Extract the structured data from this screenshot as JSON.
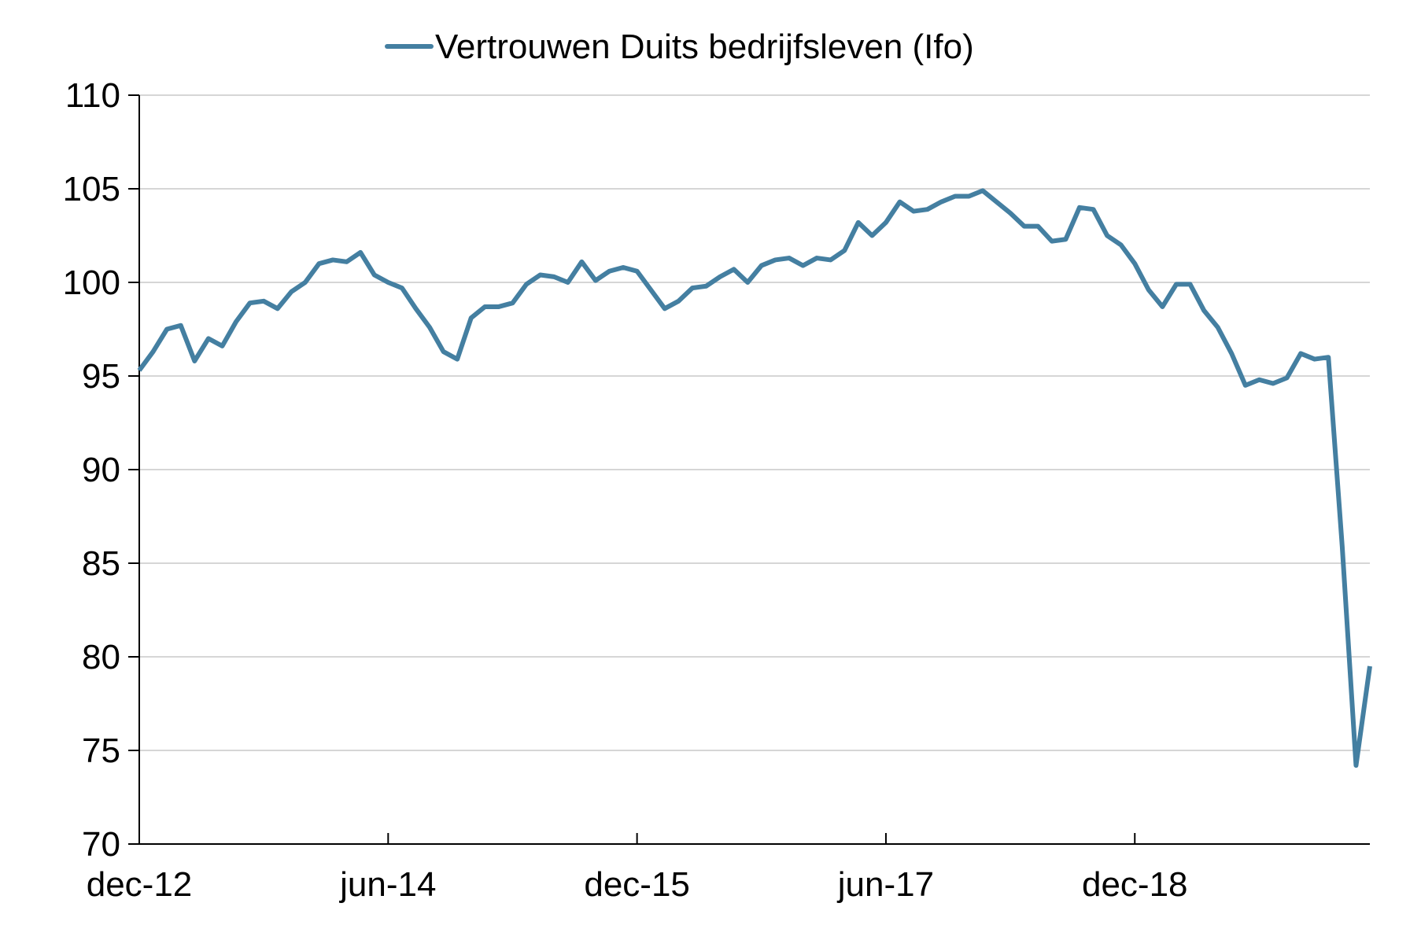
{
  "chart_data": {
    "type": "line",
    "title": "",
    "xlabel": "",
    "ylabel": "",
    "legend": {
      "placement": "top-center"
    },
    "grid": {
      "horizontal": true,
      "vertical": false
    },
    "ylim": [
      70,
      110
    ],
    "yticks": [
      70,
      75,
      80,
      85,
      90,
      95,
      100,
      105,
      110
    ],
    "xtick_labels": [
      "dec-12",
      "jun-14",
      "dec-15",
      "jun-17",
      "dec-18"
    ],
    "xtick_index": [
      0,
      18,
      36,
      54,
      72
    ],
    "x_count": 90,
    "colors": {
      "series": "#447fa1"
    },
    "series": [
      {
        "name": "Vertrouwen Duits bedrijfsleven (Ifo)",
        "values": [
          95.3,
          96.3,
          97.5,
          97.7,
          95.8,
          97.0,
          96.6,
          97.9,
          98.9,
          99.0,
          98.6,
          99.5,
          100.0,
          101.0,
          101.2,
          101.1,
          101.6,
          100.4,
          100.0,
          99.7,
          98.6,
          97.6,
          96.3,
          95.9,
          98.1,
          98.7,
          98.7,
          98.9,
          99.9,
          100.4,
          100.3,
          100.0,
          101.1,
          100.1,
          100.6,
          100.8,
          100.6,
          99.6,
          98.6,
          99.0,
          99.7,
          99.8,
          100.3,
          100.7,
          100.0,
          100.9,
          101.2,
          101.3,
          100.9,
          101.3,
          101.2,
          101.7,
          103.2,
          102.5,
          103.2,
          104.3,
          103.8,
          103.9,
          104.3,
          104.6,
          104.6,
          104.9,
          104.3,
          103.7,
          103.0,
          103.0,
          102.2,
          102.3,
          104.0,
          103.9,
          102.5,
          102.0,
          101.0,
          99.6,
          98.7,
          99.9,
          99.9,
          98.5,
          97.6,
          96.2,
          94.5,
          94.8,
          94.6,
          94.9,
          96.2,
          95.9,
          96.0,
          85.9,
          74.2,
          79.5
        ]
      }
    ]
  }
}
